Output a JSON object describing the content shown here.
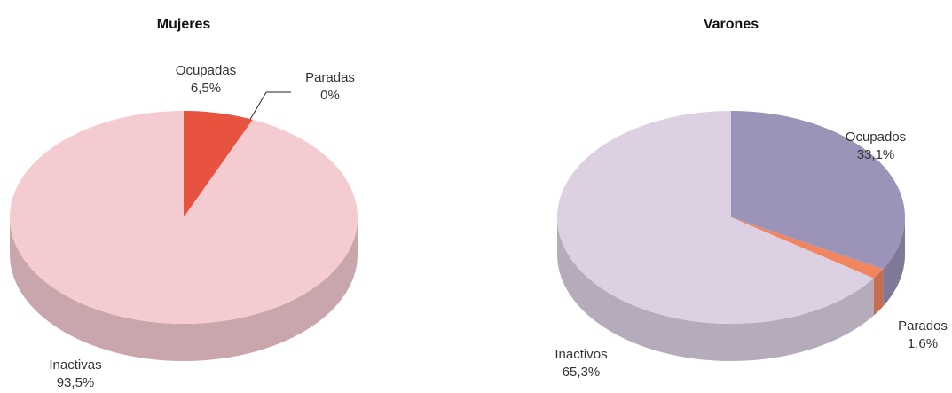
{
  "chart_data": [
    {
      "type": "pie",
      "title": "Mujeres",
      "categories": [
        "Ocupadas",
        "Paradas",
        "Inactivas"
      ],
      "values": [
        6.5,
        0,
        93.5
      ],
      "value_labels": [
        "6,5%",
        "0%",
        "93,5%"
      ],
      "colors": [
        "#e8533f",
        "#e8661e",
        "#f5cbd2"
      ]
    },
    {
      "type": "pie",
      "title": "Varones",
      "categories": [
        "Ocupados",
        "Parados",
        "Inactivos"
      ],
      "values": [
        33.1,
        1.6,
        65.3
      ],
      "value_labels": [
        "33,1%",
        "1,6%",
        "65,3%"
      ],
      "colors": [
        "#9b94b8",
        "#f0855f",
        "#ddd0e3"
      ]
    }
  ]
}
